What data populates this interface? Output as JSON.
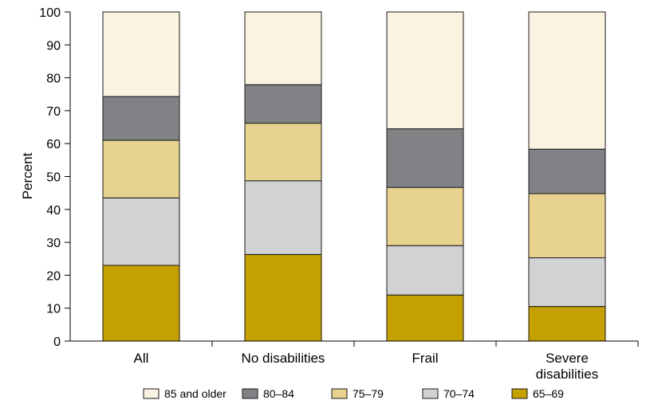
{
  "chart_data": {
    "type": "bar",
    "stacked": true,
    "ylabel": "Percent",
    "ylim": [
      0,
      100
    ],
    "yticks": [
      0,
      10,
      20,
      30,
      40,
      50,
      60,
      70,
      80,
      90,
      100
    ],
    "categories": [
      {
        "lines": [
          "All"
        ]
      },
      {
        "lines": [
          "No disabilities"
        ]
      },
      {
        "lines": [
          "Frail"
        ]
      },
      {
        "lines": [
          "Severe",
          "disabilities"
        ]
      }
    ],
    "series": [
      {
        "name": "65–69",
        "color": "#c4a000",
        "values": [
          23,
          26.3,
          14,
          10.5
        ]
      },
      {
        "name": "70–74",
        "color": "#d1d2d4",
        "values": [
          20.5,
          22.4,
          15,
          14.8
        ]
      },
      {
        "name": "75–79",
        "color": "#e8d28f",
        "values": [
          17.5,
          17.5,
          17.7,
          19.5
        ]
      },
      {
        "name": "80–84",
        "color": "#808285",
        "values": [
          13.3,
          11.7,
          17.8,
          13.5
        ]
      },
      {
        "name": "85 and older",
        "color": "#faf3e1",
        "values": [
          25.7,
          22.1,
          35.5,
          41.7
        ]
      }
    ],
    "legend": {
      "position": "bottom",
      "order": [
        "85 and older",
        "80–84",
        "75–79",
        "70–74",
        "65–69"
      ]
    },
    "grid": false
  }
}
